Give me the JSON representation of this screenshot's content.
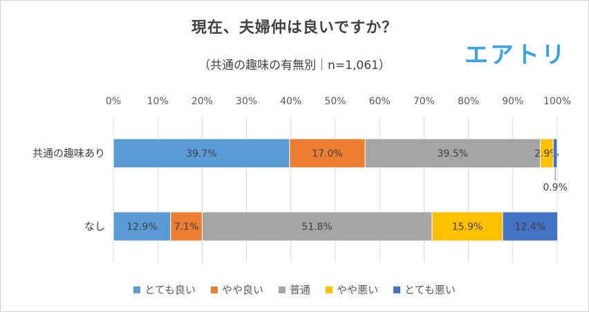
{
  "title": "現在、夫婦仲は良いですか？",
  "subtitle": "（共通の趣味の有無別｜n=1,061）",
  "logo_text": "エアトリ",
  "chart_data": {
    "type": "bar",
    "orientation": "horizontal",
    "stacked": "percent",
    "categories": [
      "共通の趣味あり",
      "なし"
    ],
    "series": [
      {
        "name": "とても良い",
        "color": "#5b9bd5",
        "values": [
          39.7,
          12.9
        ],
        "labels": [
          "39.7%",
          "12.9%"
        ]
      },
      {
        "name": "やや良い",
        "color": "#ed7d31",
        "values": [
          17.0,
          7.1
        ],
        "labels": [
          "17.0%",
          "7.1%"
        ]
      },
      {
        "name": "普通",
        "color": "#a5a5a5",
        "values": [
          39.5,
          51.8
        ],
        "labels": [
          "39.5%",
          "51.8%"
        ]
      },
      {
        "name": "やや悪い",
        "color": "#ffc000",
        "values": [
          2.9,
          15.9
        ],
        "labels": [
          "2.9%",
          "15.9%"
        ]
      },
      {
        "name": "とても悪い",
        "color": "#4472c4",
        "values": [
          0.9,
          12.4
        ],
        "labels": [
          "0.9%",
          "12.4%"
        ]
      }
    ],
    "xticks": [
      "0%",
      "10%",
      "20%",
      "30%",
      "40%",
      "50%",
      "60%",
      "70%",
      "80%",
      "90%",
      "100%"
    ],
    "xlim": [
      0,
      100
    ],
    "axis_position": "top",
    "grid": true,
    "legend_position": "bottom"
  }
}
